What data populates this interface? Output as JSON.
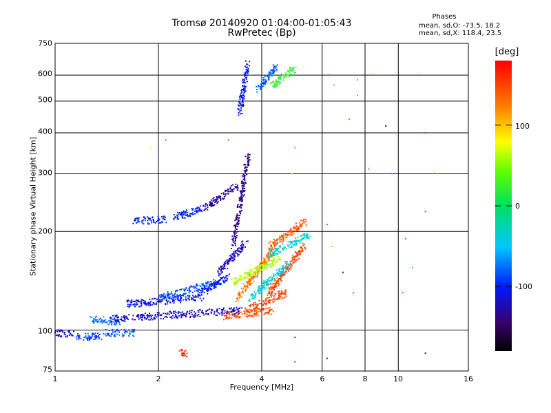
{
  "chart_data": {
    "type": "scatter",
    "title": "Tromsø 20140920 01:04:00-01:05:43",
    "subtitle": "RwPretec (Bp)",
    "xlabel": "Frequency [MHz]",
    "ylabel": "Stationary phase Virtual Height [km]",
    "x_scale": "log",
    "y_scale": "log",
    "xlim": [
      1,
      16
    ],
    "ylim": [
      75,
      750
    ],
    "x_ticks": [
      "1",
      "2",
      "4",
      "6",
      "8",
      "10",
      "16"
    ],
    "y_ticks": [
      "75",
      "100",
      "200",
      "300",
      "400",
      "500",
      "600",
      "750"
    ],
    "grid": true,
    "legend": {
      "title": "Phases",
      "o_text": "mean, sd,O: -73.5, 18.2",
      "x_text": "mean, sd,X: 118.4, 23.5"
    },
    "colorbar": {
      "title": "[deg]",
      "range": [
        -180,
        180
      ],
      "ticks": [
        "100",
        "0",
        "-100"
      ],
      "tick_values": [
        100,
        0,
        -100
      ]
    },
    "series": [
      {
        "segments": [
          [
            1.0,
            98,
            1.12,
            97,
            -115
          ],
          [
            1.15,
            95,
            1.35,
            96,
            -90
          ],
          [
            1.4,
            98,
            1.7,
            98,
            -85
          ],
          [
            1.25,
            108,
            1.55,
            106,
            -75
          ],
          [
            1.45,
            108,
            3.5,
            115,
            -120
          ],
          [
            1.6,
            120,
            2.7,
            126,
            -110
          ],
          [
            2.0,
            125,
            3.0,
            140,
            -85
          ],
          [
            2.6,
            128,
            3.2,
            145,
            -105
          ],
          [
            3.0,
            150,
            3.6,
            185,
            -120
          ],
          [
            1.7,
            215,
            2.1,
            218,
            -100
          ],
          [
            2.2,
            220,
            2.7,
            235,
            -100
          ],
          [
            2.7,
            235,
            3.4,
            275,
            -130
          ],
          [
            3.3,
            180,
            3.65,
            340,
            -135
          ],
          [
            3.45,
            460,
            3.65,
            650,
            -105
          ],
          [
            3.9,
            540,
            4.4,
            640,
            -80
          ],
          [
            4.3,
            560,
            5.0,
            630,
            20
          ],
          [
            3.1,
            110,
            4.3,
            115,
            145
          ],
          [
            3.6,
            115,
            4.7,
            130,
            150
          ],
          [
            4.2,
            130,
            5.3,
            180,
            150
          ],
          [
            3.4,
            125,
            4.3,
            175,
            130
          ],
          [
            4.2,
            180,
            5.4,
            215,
            140
          ],
          [
            3.3,
            140,
            4.5,
            165,
            60
          ],
          [
            4.2,
            170,
            5.5,
            195,
            -35
          ],
          [
            3.7,
            125,
            4.8,
            160,
            -40
          ],
          [
            2.3,
            85,
            2.4,
            85,
            160
          ]
        ]
      },
      {
        "points": [
          [
            6.3,
            600,
            150
          ],
          [
            6.5,
            560,
            110
          ],
          [
            7.2,
            440,
            130
          ],
          [
            7.6,
            520,
            -40
          ],
          [
            8.2,
            310,
            140
          ],
          [
            6.2,
            210,
            160
          ],
          [
            6.4,
            180,
            40
          ],
          [
            6.9,
            150,
            -140
          ],
          [
            7.4,
            130,
            150
          ],
          [
            9.6,
            300,
            -60
          ],
          [
            10.5,
            190,
            140
          ],
          [
            11.0,
            155,
            -40
          ],
          [
            12.0,
            230,
            160
          ],
          [
            12.0,
            400,
            160
          ],
          [
            13.0,
            300,
            110
          ],
          [
            12.0,
            85,
            -140
          ],
          [
            10.3,
            130,
            150
          ],
          [
            9.2,
            420,
            -160
          ],
          [
            6.2,
            82,
            -120
          ],
          [
            5.0,
            95,
            -90
          ],
          [
            5.0,
            80,
            160
          ],
          [
            4.9,
            300,
            60
          ],
          [
            5.0,
            360,
            -40
          ],
          [
            11.5,
            600,
            155
          ],
          [
            7.6,
            580,
            120
          ],
          [
            8.4,
            600,
            150
          ],
          [
            3.2,
            380,
            150
          ],
          [
            1.9,
            360,
            80
          ],
          [
            2.1,
            380,
            150
          ]
        ]
      }
    ]
  }
}
